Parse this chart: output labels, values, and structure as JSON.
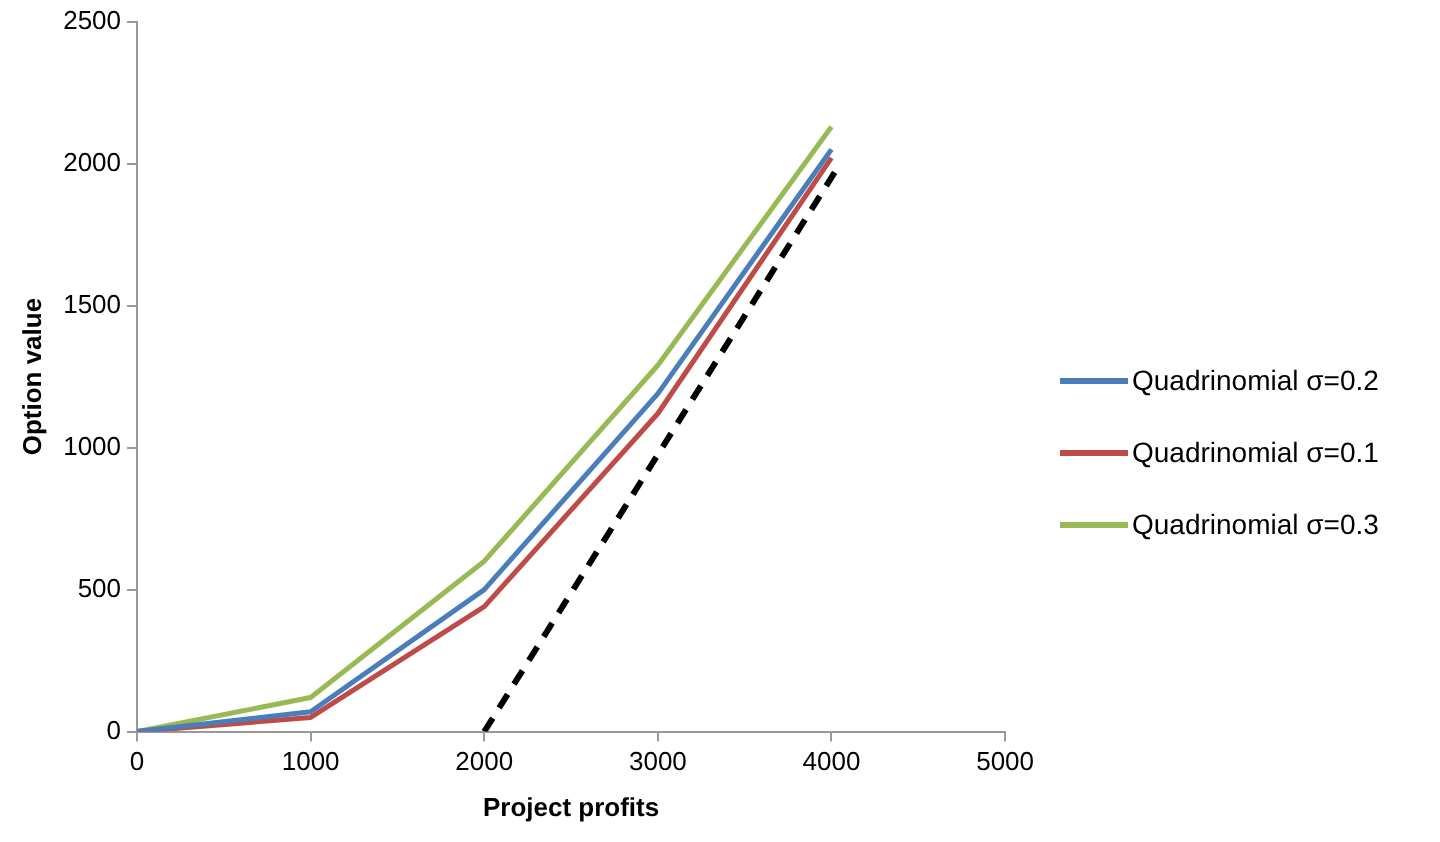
{
  "chart_data": {
    "type": "line",
    "xlabel": "Project profits",
    "ylabel": "Option value",
    "x": [
      0,
      1000,
      2000,
      3000,
      4000
    ],
    "series": [
      {
        "name": "Quadrinomial σ=0.2",
        "color": "#4a7ebb",
        "values": [
          0,
          70,
          500,
          1190,
          2050
        ]
      },
      {
        "name": "Quadrinomial σ=0.1",
        "color": "#be4b48",
        "values": [
          0,
          50,
          440,
          1120,
          2020
        ]
      },
      {
        "name": "Quadrinomial σ=0.3",
        "color": "#98b954",
        "values": [
          0,
          120,
          600,
          1290,
          2130
        ]
      },
      {
        "color": "#000000",
        "x": [
          2000,
          4050
        ],
        "values": [
          0,
          2000
        ],
        "line_style": "dashed"
      }
    ],
    "xlim": [
      0,
      5000
    ],
    "xticks": [
      0,
      1000,
      2000,
      3000,
      4000,
      5000
    ],
    "ylim": [
      0,
      2500
    ],
    "yticks": [
      0,
      500,
      1000,
      1500,
      2000,
      2500
    ],
    "grid": false,
    "legend": "right",
    "marker": "none",
    "line_style": "solid"
  }
}
